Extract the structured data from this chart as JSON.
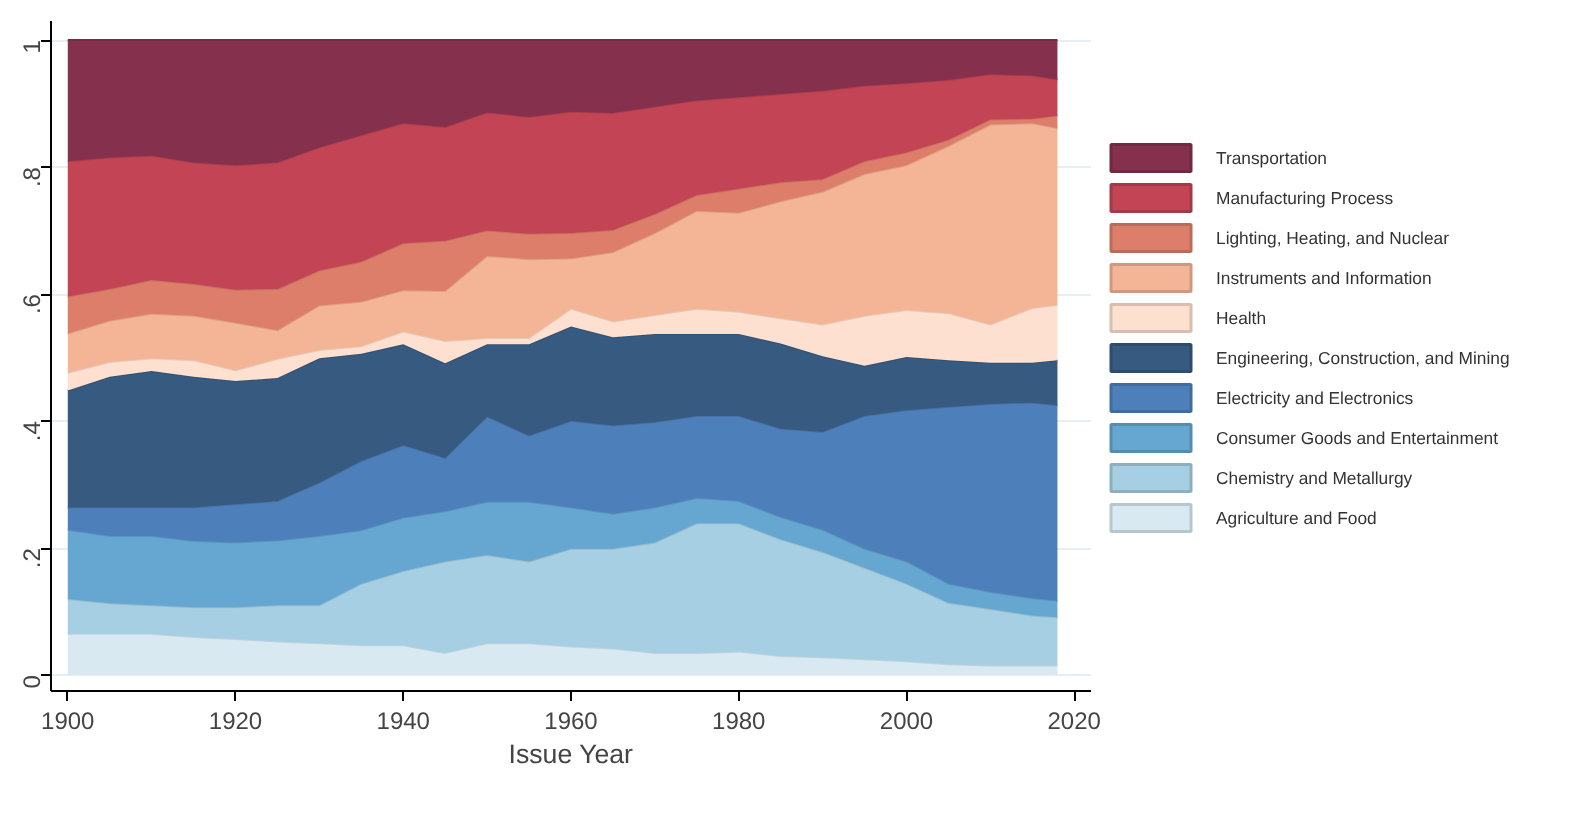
{
  "chart_data": {
    "type": "area",
    "stacked": true,
    "xlabel": "Issue Year",
    "x": [
      1900,
      1905,
      1910,
      1915,
      1920,
      1925,
      1930,
      1935,
      1940,
      1945,
      1950,
      1955,
      1960,
      1965,
      1970,
      1975,
      1980,
      1985,
      1990,
      1995,
      2000,
      2005,
      2010,
      2015,
      2018
    ],
    "xlim": [
      1898,
      2022
    ],
    "xticks": [
      1900,
      1920,
      1940,
      1960,
      1980,
      2000,
      2020
    ],
    "ylim": [
      -0.025,
      1.03
    ],
    "yticks": [
      0,
      {
        "value": 0.2,
        "label": ".2"
      },
      {
        "value": 0.4,
        "label": ".4"
      },
      {
        "value": 0.6,
        "label": ".6"
      },
      {
        "value": 0.8,
        "label": ".8"
      },
      1
    ],
    "grid": "y",
    "legend": "right",
    "series": [
      {
        "name": "Agriculture and Food",
        "color": "#d8e9f2",
        "values": [
          0.065,
          0.065,
          0.065,
          0.06,
          0.057,
          0.053,
          0.05,
          0.047,
          0.047,
          0.035,
          0.05,
          0.05,
          0.045,
          0.042,
          0.035,
          0.035,
          0.037,
          0.03,
          0.028,
          0.025,
          0.022,
          0.017,
          0.015,
          0.015,
          0.015
        ]
      },
      {
        "name": "Chemistry and Metallurgy",
        "color": "#a6cfe3",
        "values": [
          0.055,
          0.048,
          0.045,
          0.047,
          0.05,
          0.057,
          0.06,
          0.097,
          0.117,
          0.144,
          0.139,
          0.129,
          0.154,
          0.157,
          0.174,
          0.204,
          0.202,
          0.184,
          0.166,
          0.144,
          0.122,
          0.097,
          0.089,
          0.079,
          0.076
        ]
      },
      {
        "name": "Consumer Goods and Entertainment",
        "color": "#65a7d0",
        "values": [
          0.109,
          0.106,
          0.109,
          0.104,
          0.102,
          0.102,
          0.109,
          0.084,
          0.084,
          0.079,
          0.084,
          0.094,
          0.065,
          0.055,
          0.055,
          0.04,
          0.035,
          0.035,
          0.035,
          0.03,
          0.035,
          0.03,
          0.027,
          0.027,
          0.026
        ]
      },
      {
        "name": "Electricity and Electronics",
        "color": "#4d80bb",
        "values": [
          0.035,
          0.045,
          0.045,
          0.053,
          0.06,
          0.062,
          0.084,
          0.109,
          0.114,
          0.084,
          0.134,
          0.104,
          0.136,
          0.139,
          0.134,
          0.129,
          0.134,
          0.139,
          0.154,
          0.209,
          0.238,
          0.278,
          0.296,
          0.308,
          0.308
        ]
      },
      {
        "name": "Engineering, Construction, and Mining",
        "color": "#375a80",
        "values": [
          0.184,
          0.206,
          0.215,
          0.206,
          0.194,
          0.194,
          0.196,
          0.169,
          0.159,
          0.149,
          0.114,
          0.144,
          0.149,
          0.139,
          0.139,
          0.129,
          0.129,
          0.134,
          0.119,
          0.079,
          0.084,
          0.074,
          0.065,
          0.063,
          0.071
        ]
      },
      {
        "name": "Health",
        "color": "#fde0d0",
        "values": [
          0.028,
          0.023,
          0.02,
          0.026,
          0.017,
          0.03,
          0.013,
          0.012,
          0.02,
          0.035,
          0.01,
          0.01,
          0.028,
          0.025,
          0.03,
          0.04,
          0.035,
          0.04,
          0.05,
          0.079,
          0.074,
          0.074,
          0.06,
          0.086,
          0.087
        ]
      },
      {
        "name": "Instruments and Information",
        "color": "#f4b597",
        "values": [
          0.062,
          0.065,
          0.07,
          0.07,
          0.075,
          0.045,
          0.07,
          0.07,
          0.065,
          0.079,
          0.129,
          0.124,
          0.079,
          0.109,
          0.129,
          0.154,
          0.156,
          0.184,
          0.209,
          0.223,
          0.228,
          0.263,
          0.315,
          0.291,
          0.278
        ]
      },
      {
        "name": "Lighting, Heating, and Nuclear",
        "color": "#dd7e6b",
        "values": [
          0.058,
          0.05,
          0.053,
          0.05,
          0.052,
          0.065,
          0.055,
          0.063,
          0.074,
          0.079,
          0.04,
          0.04,
          0.04,
          0.035,
          0.03,
          0.025,
          0.038,
          0.03,
          0.02,
          0.02,
          0.02,
          0.01,
          0.008,
          0.007,
          0.02
        ]
      },
      {
        "name": "Manufacturing Process",
        "color": "#c24455",
        "values": [
          0.213,
          0.207,
          0.196,
          0.191,
          0.196,
          0.199,
          0.194,
          0.199,
          0.189,
          0.179,
          0.186,
          0.184,
          0.191,
          0.184,
          0.169,
          0.149,
          0.144,
          0.139,
          0.139,
          0.119,
          0.109,
          0.094,
          0.071,
          0.068,
          0.057
        ]
      },
      {
        "name": "Transportation",
        "color": "#85314d",
        "values": [
          0.191,
          0.185,
          0.182,
          0.193,
          0.197,
          0.193,
          0.169,
          0.15,
          0.131,
          0.137,
          0.114,
          0.121,
          0.113,
          0.115,
          0.105,
          0.095,
          0.09,
          0.085,
          0.08,
          0.072,
          0.068,
          0.063,
          0.054,
          0.056,
          0.062
        ]
      }
    ]
  }
}
